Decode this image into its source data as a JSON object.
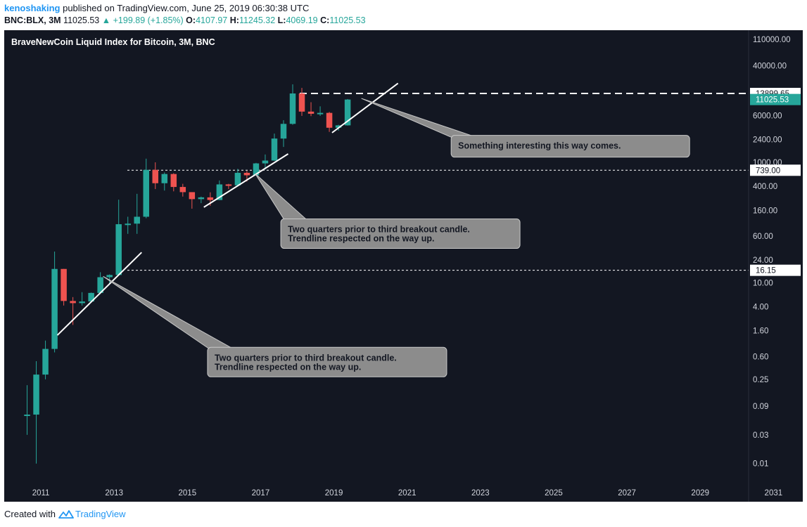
{
  "header": {
    "user": "kenoshaking",
    "published": "published on TradingView.com, June 25, 2019 06:30:38 UTC",
    "symbol": "BNC:BLX, 3M",
    "last": "11025.53",
    "up_arrow": "▲",
    "change": "+199.89 (+1.85%)",
    "o_label": "O:",
    "o": "4107.97",
    "h_label": "H:",
    "h": "11245.32",
    "l_label": "L:",
    "l": "4069.19",
    "c_label": "C:",
    "c": "11025.53"
  },
  "footer": {
    "created_with": "Created with",
    "brand": "TradingView",
    "brand_icon": "tradingview-logo-icon"
  },
  "colors": {
    "up": "#26a69a",
    "down": "#ef5350",
    "background": "#131722",
    "text": "#d1d4dc",
    "callout": "#8c8c8c"
  },
  "chart_data": {
    "type": "candlestick",
    "title": "BraveNewCoin Liquid Index for Bitcoin, 3M, BNC",
    "interval": "3M",
    "y_scale": "log",
    "grid": false,
    "xlim": [
      2010.0,
      2031.8
    ],
    "ylim": [
      0.0055,
      140000
    ],
    "x_ticks": [
      "2011",
      "2013",
      "2015",
      "2017",
      "2019",
      "2021",
      "2023",
      "2025",
      "2027",
      "2029",
      "2031"
    ],
    "y_ticks": [
      "110000.00",
      "40000.00",
      "15000.00",
      "6000.00",
      "2400.00",
      "1000.00",
      "400.00",
      "160.00",
      "60.00",
      "24.00",
      "10.00",
      "4.00",
      "1.60",
      "0.60",
      "0.25",
      "0.09",
      "0.03",
      "0.01"
    ],
    "candles": [
      {
        "t": "2010-07",
        "o": 0.065,
        "h": 0.2,
        "l": 0.03,
        "c": 0.065
      },
      {
        "t": "2010-10",
        "o": 0.065,
        "h": 0.5,
        "l": 0.01,
        "c": 0.3
      },
      {
        "t": "2011-01",
        "o": 0.3,
        "h": 1.1,
        "l": 0.25,
        "c": 0.8
      },
      {
        "t": "2011-04",
        "o": 0.8,
        "h": 33,
        "l": 0.7,
        "c": 17
      },
      {
        "t": "2011-07",
        "o": 17,
        "h": 17,
        "l": 4.2,
        "c": 5
      },
      {
        "t": "2011-10",
        "o": 5,
        "h": 5.8,
        "l": 2.0,
        "c": 4.6
      },
      {
        "t": "2012-01",
        "o": 4.6,
        "h": 7.0,
        "l": 4.2,
        "c": 4.9
      },
      {
        "t": "2012-04",
        "o": 4.9,
        "h": 6.9,
        "l": 4.7,
        "c": 6.8
      },
      {
        "t": "2012-07",
        "o": 6.8,
        "h": 15,
        "l": 6.5,
        "c": 12.4
      },
      {
        "t": "2012-10",
        "o": 12.4,
        "h": 13.8,
        "l": 9.8,
        "c": 13.5
      },
      {
        "t": "2013-01",
        "o": 13.5,
        "h": 240,
        "l": 13.3,
        "c": 94
      },
      {
        "t": "2013-04",
        "o": 94,
        "h": 125,
        "l": 65,
        "c": 96
      },
      {
        "t": "2013-07",
        "o": 96,
        "h": 300,
        "l": 65,
        "c": 125
      },
      {
        "t": "2013-10",
        "o": 125,
        "h": 1150,
        "l": 118,
        "c": 750
      },
      {
        "t": "2014-01",
        "o": 750,
        "h": 1000,
        "l": 360,
        "c": 450
      },
      {
        "t": "2014-04",
        "o": 450,
        "h": 680,
        "l": 340,
        "c": 640
      },
      {
        "t": "2014-07",
        "o": 640,
        "h": 660,
        "l": 330,
        "c": 390
      },
      {
        "t": "2014-10",
        "o": 390,
        "h": 440,
        "l": 270,
        "c": 320
      },
      {
        "t": "2015-01",
        "o": 320,
        "h": 320,
        "l": 170,
        "c": 245
      },
      {
        "t": "2015-04",
        "o": 245,
        "h": 270,
        "l": 210,
        "c": 262
      },
      {
        "t": "2015-07",
        "o": 262,
        "h": 318,
        "l": 190,
        "c": 237
      },
      {
        "t": "2015-10",
        "o": 237,
        "h": 500,
        "l": 235,
        "c": 430
      },
      {
        "t": "2016-01",
        "o": 430,
        "h": 440,
        "l": 360,
        "c": 415
      },
      {
        "t": "2016-04",
        "o": 415,
        "h": 780,
        "l": 410,
        "c": 670
      },
      {
        "t": "2016-07",
        "o": 670,
        "h": 720,
        "l": 480,
        "c": 610
      },
      {
        "t": "2016-10",
        "o": 610,
        "h": 980,
        "l": 600,
        "c": 960
      },
      {
        "t": "2017-01",
        "o": 960,
        "h": 1350,
        "l": 760,
        "c": 1070
      },
      {
        "t": "2017-04",
        "o": 1070,
        "h": 3000,
        "l": 1060,
        "c": 2480
      },
      {
        "t": "2017-07",
        "o": 2480,
        "h": 5000,
        "l": 1800,
        "c": 4350
      },
      {
        "t": "2017-10",
        "o": 4350,
        "h": 19700,
        "l": 4200,
        "c": 13900
      },
      {
        "t": "2018-01",
        "o": 13900,
        "h": 17200,
        "l": 5900,
        "c": 6950
      },
      {
        "t": "2018-04",
        "o": 6950,
        "h": 9950,
        "l": 5850,
        "c": 6400
      },
      {
        "t": "2018-07",
        "o": 6400,
        "h": 8500,
        "l": 5900,
        "c": 6620
      },
      {
        "t": "2018-10",
        "o": 6620,
        "h": 6850,
        "l": 3200,
        "c": 3750
      },
      {
        "t": "2019-01",
        "o": 3750,
        "h": 4200,
        "l": 3350,
        "c": 4108
      },
      {
        "t": "2019-04",
        "o": 4108,
        "h": 11245.32,
        "l": 4069.19,
        "c": 11025.53
      }
    ],
    "price_lines": [
      {
        "value": "13899.65",
        "style": "dashed"
      },
      {
        "value": "739.00",
        "style": "dashed"
      },
      {
        "value": "16.15",
        "style": "dashed"
      }
    ],
    "last_price": "11025.53",
    "trendlines": [
      {
        "t1": 2011.45,
        "p1": 1.35,
        "t2": 2013.75,
        "p2": 32
      },
      {
        "t1": 2015.45,
        "p1": 180,
        "t2": 2017.75,
        "p2": 1380
      },
      {
        "t1": 2018.95,
        "p1": 3100,
        "t2": 2020.75,
        "p2": 20500
      },
      {
        "t1": 2019.75,
        "p1": 11500,
        "t2": 2022.2,
        "p2": 3700
      },
      {
        "t1": 2012.7,
        "p1": 12.8,
        "t2": 2015.45,
        "p2": 1.05
      },
      {
        "t1": 2016.85,
        "p1": 650,
        "t2": 2017.55,
        "p2": 130
      }
    ],
    "annotations": [
      {
        "id": "callout-top",
        "text": "Something interesting this way comes.",
        "t": 2022.2,
        "p": 2800
      },
      {
        "id": "callout-mid",
        "lines": [
          "Two quarters prior to third breakout candle.",
          "Trendline respected on the way up."
        ],
        "t": 2017.55,
        "p": 115
      },
      {
        "id": "callout-low",
        "lines": [
          "Two quarters prior to third breakout candle.",
          "Trendline respected on the way up."
        ],
        "t": 2015.55,
        "p": 0.85
      }
    ]
  }
}
